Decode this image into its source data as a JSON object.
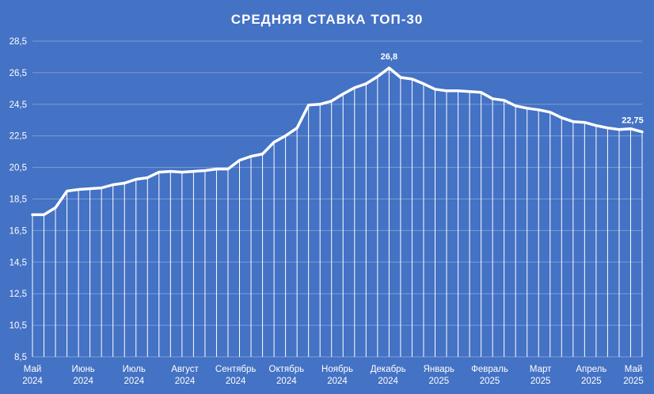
{
  "chart_data": {
    "type": "line",
    "title": "СРЕДНЯЯ СТАВКА ТОП-30",
    "xlabel": "",
    "ylabel": "",
    "ylim": [
      8.5,
      28.5
    ],
    "yticks": [
      "8,5",
      "10,5",
      "12,5",
      "14,5",
      "16,5",
      "18,5",
      "20,5",
      "22,5",
      "24,5",
      "26,5",
      "28,5"
    ],
    "grid": true,
    "legend": "none",
    "colors": {
      "background": "#4472C4",
      "line": "#FFFFFF",
      "grid": "#7E9DD8"
    },
    "month_labels": [
      [
        "Май",
        "2024"
      ],
      [
        "Июнь",
        "2024"
      ],
      [
        "Июль",
        "2024"
      ],
      [
        "Август",
        "2024"
      ],
      [
        "Сентябрь",
        "2024"
      ],
      [
        "Октябрь",
        "2024"
      ],
      [
        "Ноябрь",
        "2024"
      ],
      [
        "Декабрь",
        "2024"
      ],
      [
        "Январь",
        "2025"
      ],
      [
        "Февраль",
        "2025"
      ],
      [
        "Март",
        "2025"
      ],
      [
        "Апрель",
        "2025"
      ],
      [
        "Май",
        "2025"
      ]
    ],
    "values": [
      17.5,
      17.5,
      17.95,
      19.0,
      19.1,
      19.15,
      19.2,
      19.4,
      19.5,
      19.75,
      19.85,
      20.2,
      20.25,
      20.2,
      20.25,
      20.3,
      20.4,
      20.4,
      20.95,
      21.2,
      21.35,
      22.1,
      22.5,
      23.0,
      24.45,
      24.5,
      24.7,
      25.15,
      25.55,
      25.8,
      26.25,
      26.8,
      26.2,
      26.1,
      25.8,
      25.45,
      25.35,
      25.35,
      25.3,
      25.25,
      24.85,
      24.75,
      24.4,
      24.25,
      24.15,
      24.0,
      23.65,
      23.4,
      23.35,
      23.15,
      23.0,
      22.9,
      22.95,
      22.75
    ],
    "annotations": [
      {
        "index": 31,
        "label": "26,8"
      },
      {
        "index": 53,
        "label": "22,75"
      }
    ]
  }
}
